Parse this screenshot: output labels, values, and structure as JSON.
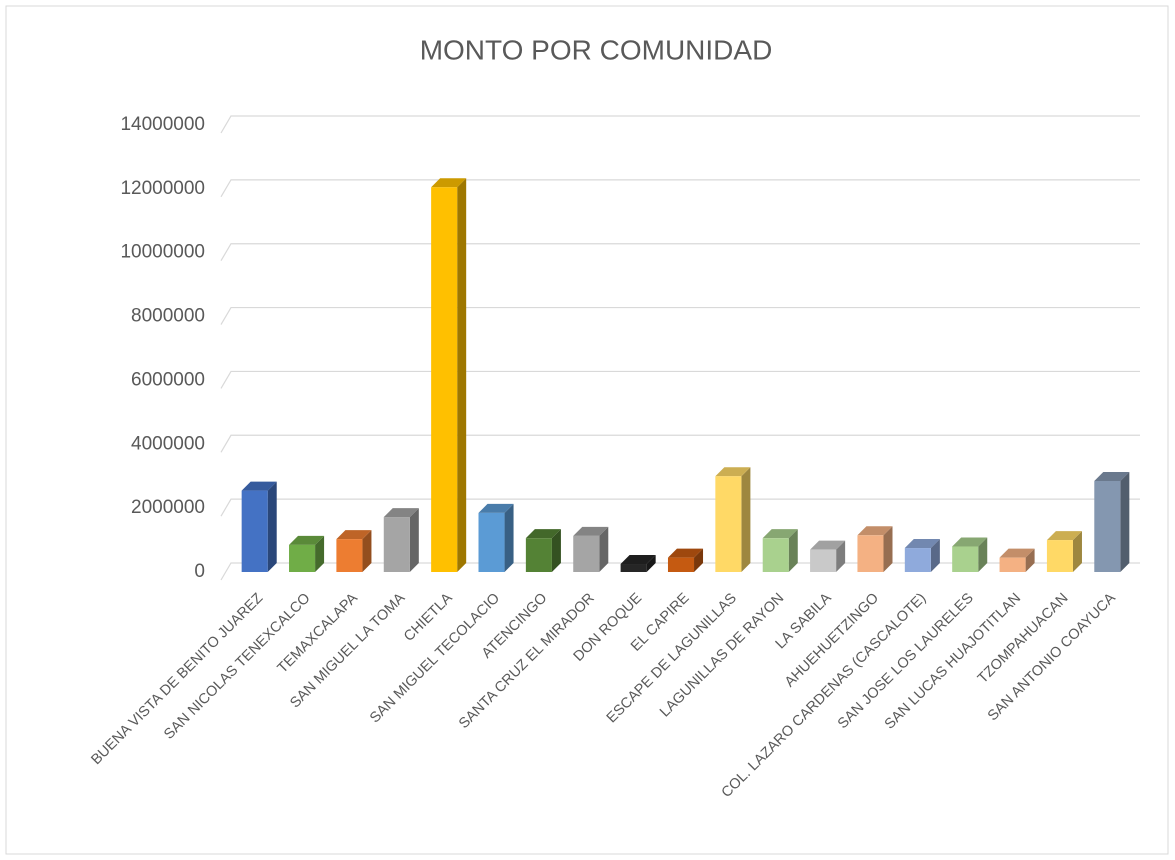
{
  "chart_data": {
    "type": "bar3d",
    "title": "MONTO POR COMUNIDAD",
    "categories": [
      "BUENA VISTA DE BENITO JUAREZ",
      "SAN NICOLAS TENEXCALCO",
      "TEMAXCALAPA",
      "SAN MIGUEL LA TOMA",
      "CHIETLA",
      "SAN MIGUEL TECOLACIO",
      "ATENCINGO",
      "SANTA CRUZ EL MIRADOR",
      "DON ROQUE",
      "EL CAPIRE",
      "ESCAPE DE LAGUNILLAS",
      "LAGUNILLAS DE RAYON",
      "LA SABILA",
      "AHUEHUETZINGO",
      "COL. LAZARO CARDENAS (CASCALOTE)",
      "SAN JOSE LOS LAURELES",
      "SAN LUCAS HUAJOTITLAN",
      "TZOMPAHUACAN",
      "SAN ANTONIO COAYUCA"
    ],
    "values": [
      2550000,
      850000,
      1030000,
      1720000,
      12050000,
      1850000,
      1060000,
      1130000,
      250000,
      450000,
      3000000,
      1060000,
      700000,
      1150000,
      750000,
      800000,
      450000,
      1000000,
      2850000
    ],
    "colors": [
      "#4472c4",
      "#70ad47",
      "#ed7d31",
      "#a5a5a5",
      "#ffc000",
      "#5b9bd5",
      "#548235",
      "#a5a5a5",
      "#262626",
      "#c55a11",
      "#ffd966",
      "#a9d18e",
      "#c9c9c9",
      "#f4b183",
      "#8faadc",
      "#a9d18e",
      "#f4b183",
      "#ffd966",
      "#8497b0"
    ],
    "ylim": [
      0,
      14000000
    ],
    "yticks": [
      0,
      2000000,
      4000000,
      6000000,
      8000000,
      10000000,
      12000000,
      14000000
    ],
    "grid": true
  }
}
